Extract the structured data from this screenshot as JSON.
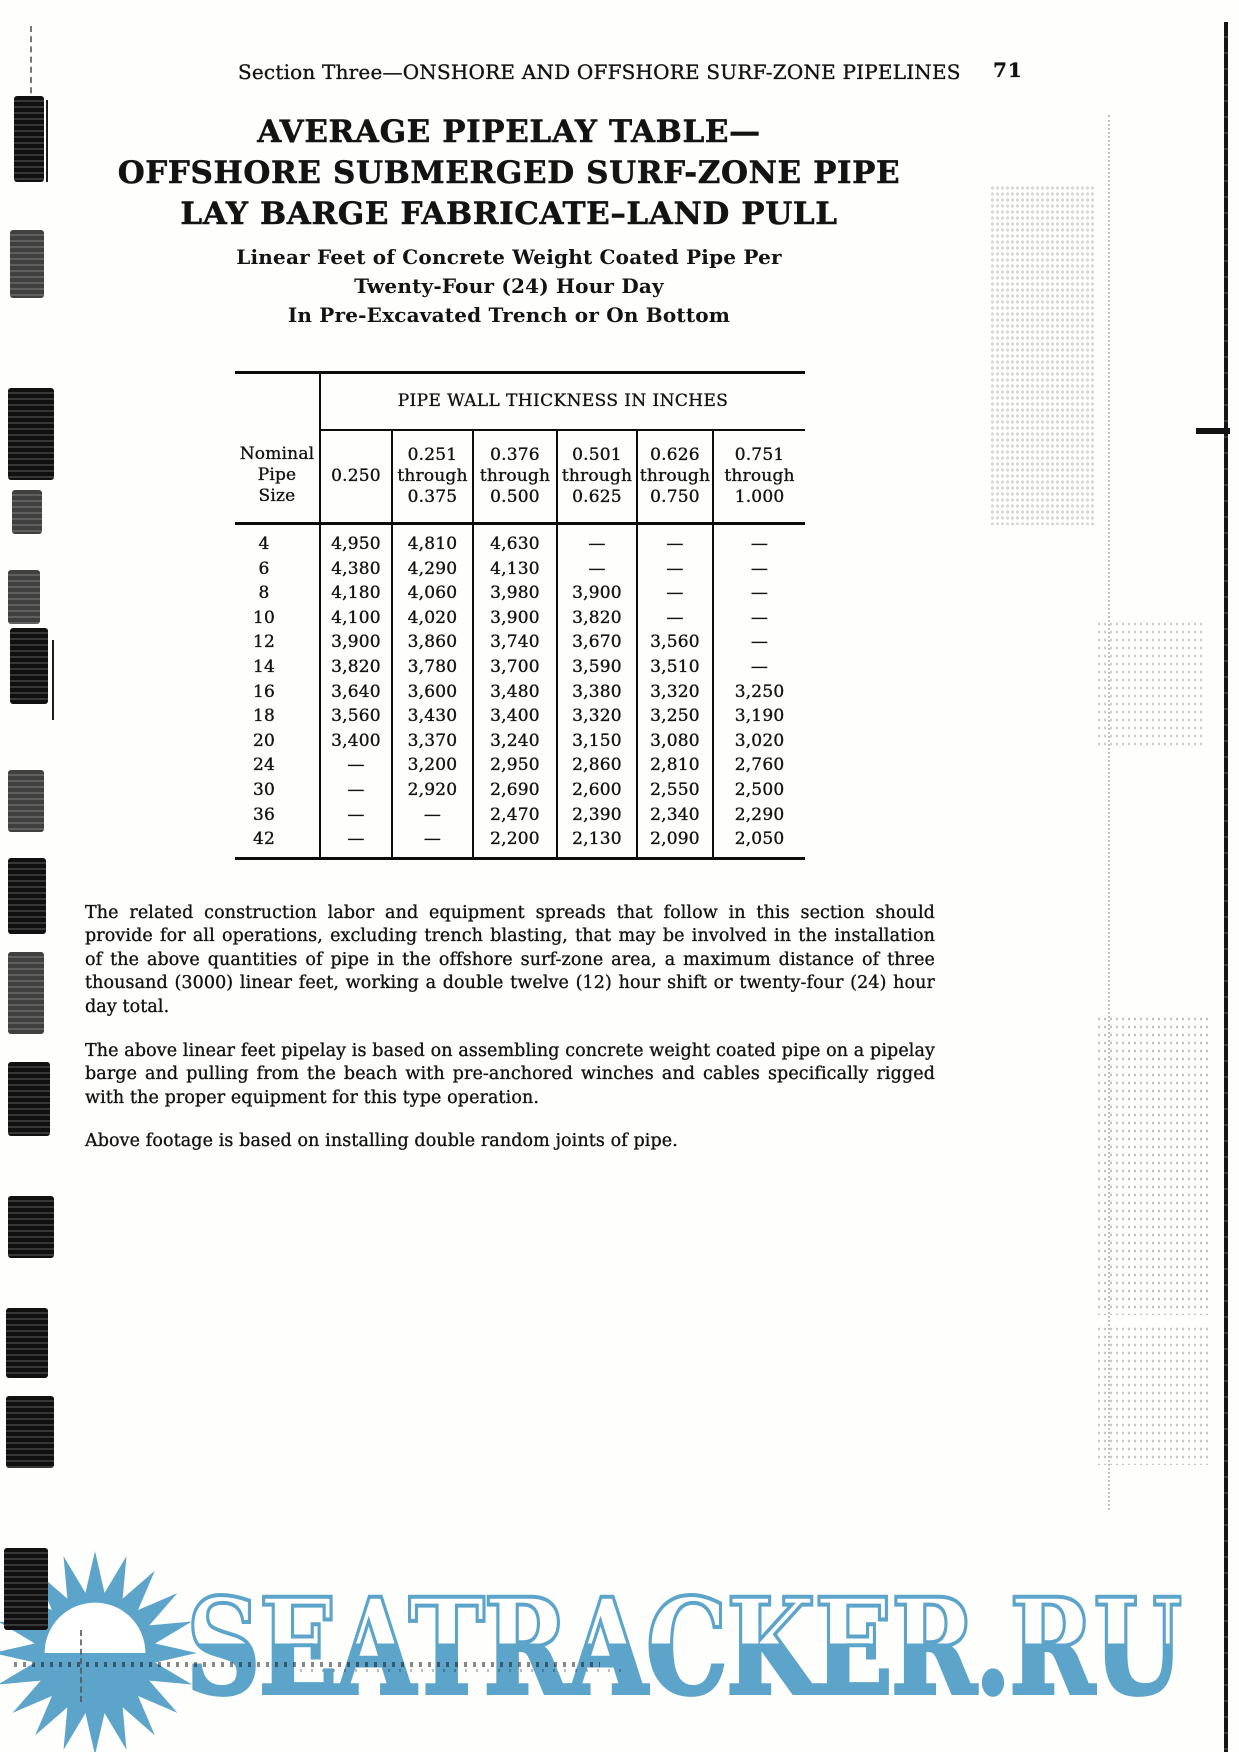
{
  "header": {
    "section_title": "Section Three—ONSHORE AND OFFSHORE SURF-ZONE PIPELINES",
    "page_number": "71"
  },
  "title": {
    "line1": "AVERAGE PIPELAY TABLE—",
    "line2": "OFFSHORE SUBMERGED SURF-ZONE PIPE",
    "line3": "LAY BARGE FABRICATE–LAND PULL"
  },
  "subtitle": {
    "line1": "Linear Feet of Concrete Weight Coated Pipe Per",
    "line2": "Twenty-Four (24) Hour Day",
    "line3": "In Pre-Excavated Trench or On Bottom"
  },
  "table": {
    "span_header": "PIPE WALL THICKNESS IN INCHES",
    "row_header_lines": [
      "Nominal",
      "Pipe",
      "Size"
    ],
    "column_header_lines": [
      [
        "0.250"
      ],
      [
        "0.251",
        "through",
        "0.375"
      ],
      [
        "0.376",
        "through",
        "0.500"
      ],
      [
        "0.501",
        "through",
        "0.625"
      ],
      [
        "0.626",
        "through",
        "0.750"
      ],
      [
        "0.751",
        "through",
        "1.000"
      ]
    ],
    "rows": [
      {
        "size": "4",
        "values": [
          "4,950",
          "4,810",
          "4,630",
          "—",
          "—",
          "—"
        ]
      },
      {
        "size": "6",
        "values": [
          "4,380",
          "4,290",
          "4,130",
          "—",
          "—",
          "—"
        ]
      },
      {
        "size": "8",
        "values": [
          "4,180",
          "4,060",
          "3,980",
          "3,900",
          "—",
          "—"
        ]
      },
      {
        "size": "10",
        "values": [
          "4,100",
          "4,020",
          "3,900",
          "3,820",
          "—",
          "—"
        ]
      },
      {
        "size": "12",
        "values": [
          "3,900",
          "3,860",
          "3,740",
          "3,670",
          "3,560",
          "—"
        ]
      },
      {
        "size": "14",
        "values": [
          "3,820",
          "3,780",
          "3,700",
          "3,590",
          "3,510",
          "—"
        ]
      },
      {
        "size": "16",
        "values": [
          "3,640",
          "3,600",
          "3,480",
          "3,380",
          "3,320",
          "3,250"
        ]
      },
      {
        "size": "18",
        "values": [
          "3,560",
          "3,430",
          "3,400",
          "3,320",
          "3,250",
          "3,190"
        ]
      },
      {
        "size": "20",
        "values": [
          "3,400",
          "3,370",
          "3,240",
          "3,150",
          "3,080",
          "3,020"
        ]
      },
      {
        "size": "24",
        "values": [
          "—",
          "3,200",
          "2,950",
          "2,860",
          "2,810",
          "2,760"
        ]
      },
      {
        "size": "30",
        "values": [
          "—",
          "2,920",
          "2,690",
          "2,600",
          "2,550",
          "2,500"
        ]
      },
      {
        "size": "36",
        "values": [
          "—",
          "—",
          "2,470",
          "2,390",
          "2,340",
          "2,290"
        ]
      },
      {
        "size": "42",
        "values": [
          "—",
          "—",
          "2,200",
          "2,130",
          "2,090",
          "2,050"
        ]
      }
    ]
  },
  "paragraphs": [
    "The related construction labor and equipment spreads that follow in this section should provide for all operations, excluding trench blasting, that may be involved in the installation of the above quantities of pipe in the offshore surf-zone area, a maximum distance of three thousand (3000) linear feet, working a double twelve (12) hour shift or twenty-four (24) hour day total.",
    "The above linear feet pipelay is based on assembling concrete weight coated pipe on a pipelay barge and pulling from the beach with pre-anchored winches and cables specifically rigged with the proper equipment for this type operation.",
    "Above footage is based on installing double random joints of pipe."
  ],
  "watermark": {
    "text": "SEATRACKER.RU",
    "color": "#5ca4c9",
    "icon": "sun-over-water-icon"
  }
}
